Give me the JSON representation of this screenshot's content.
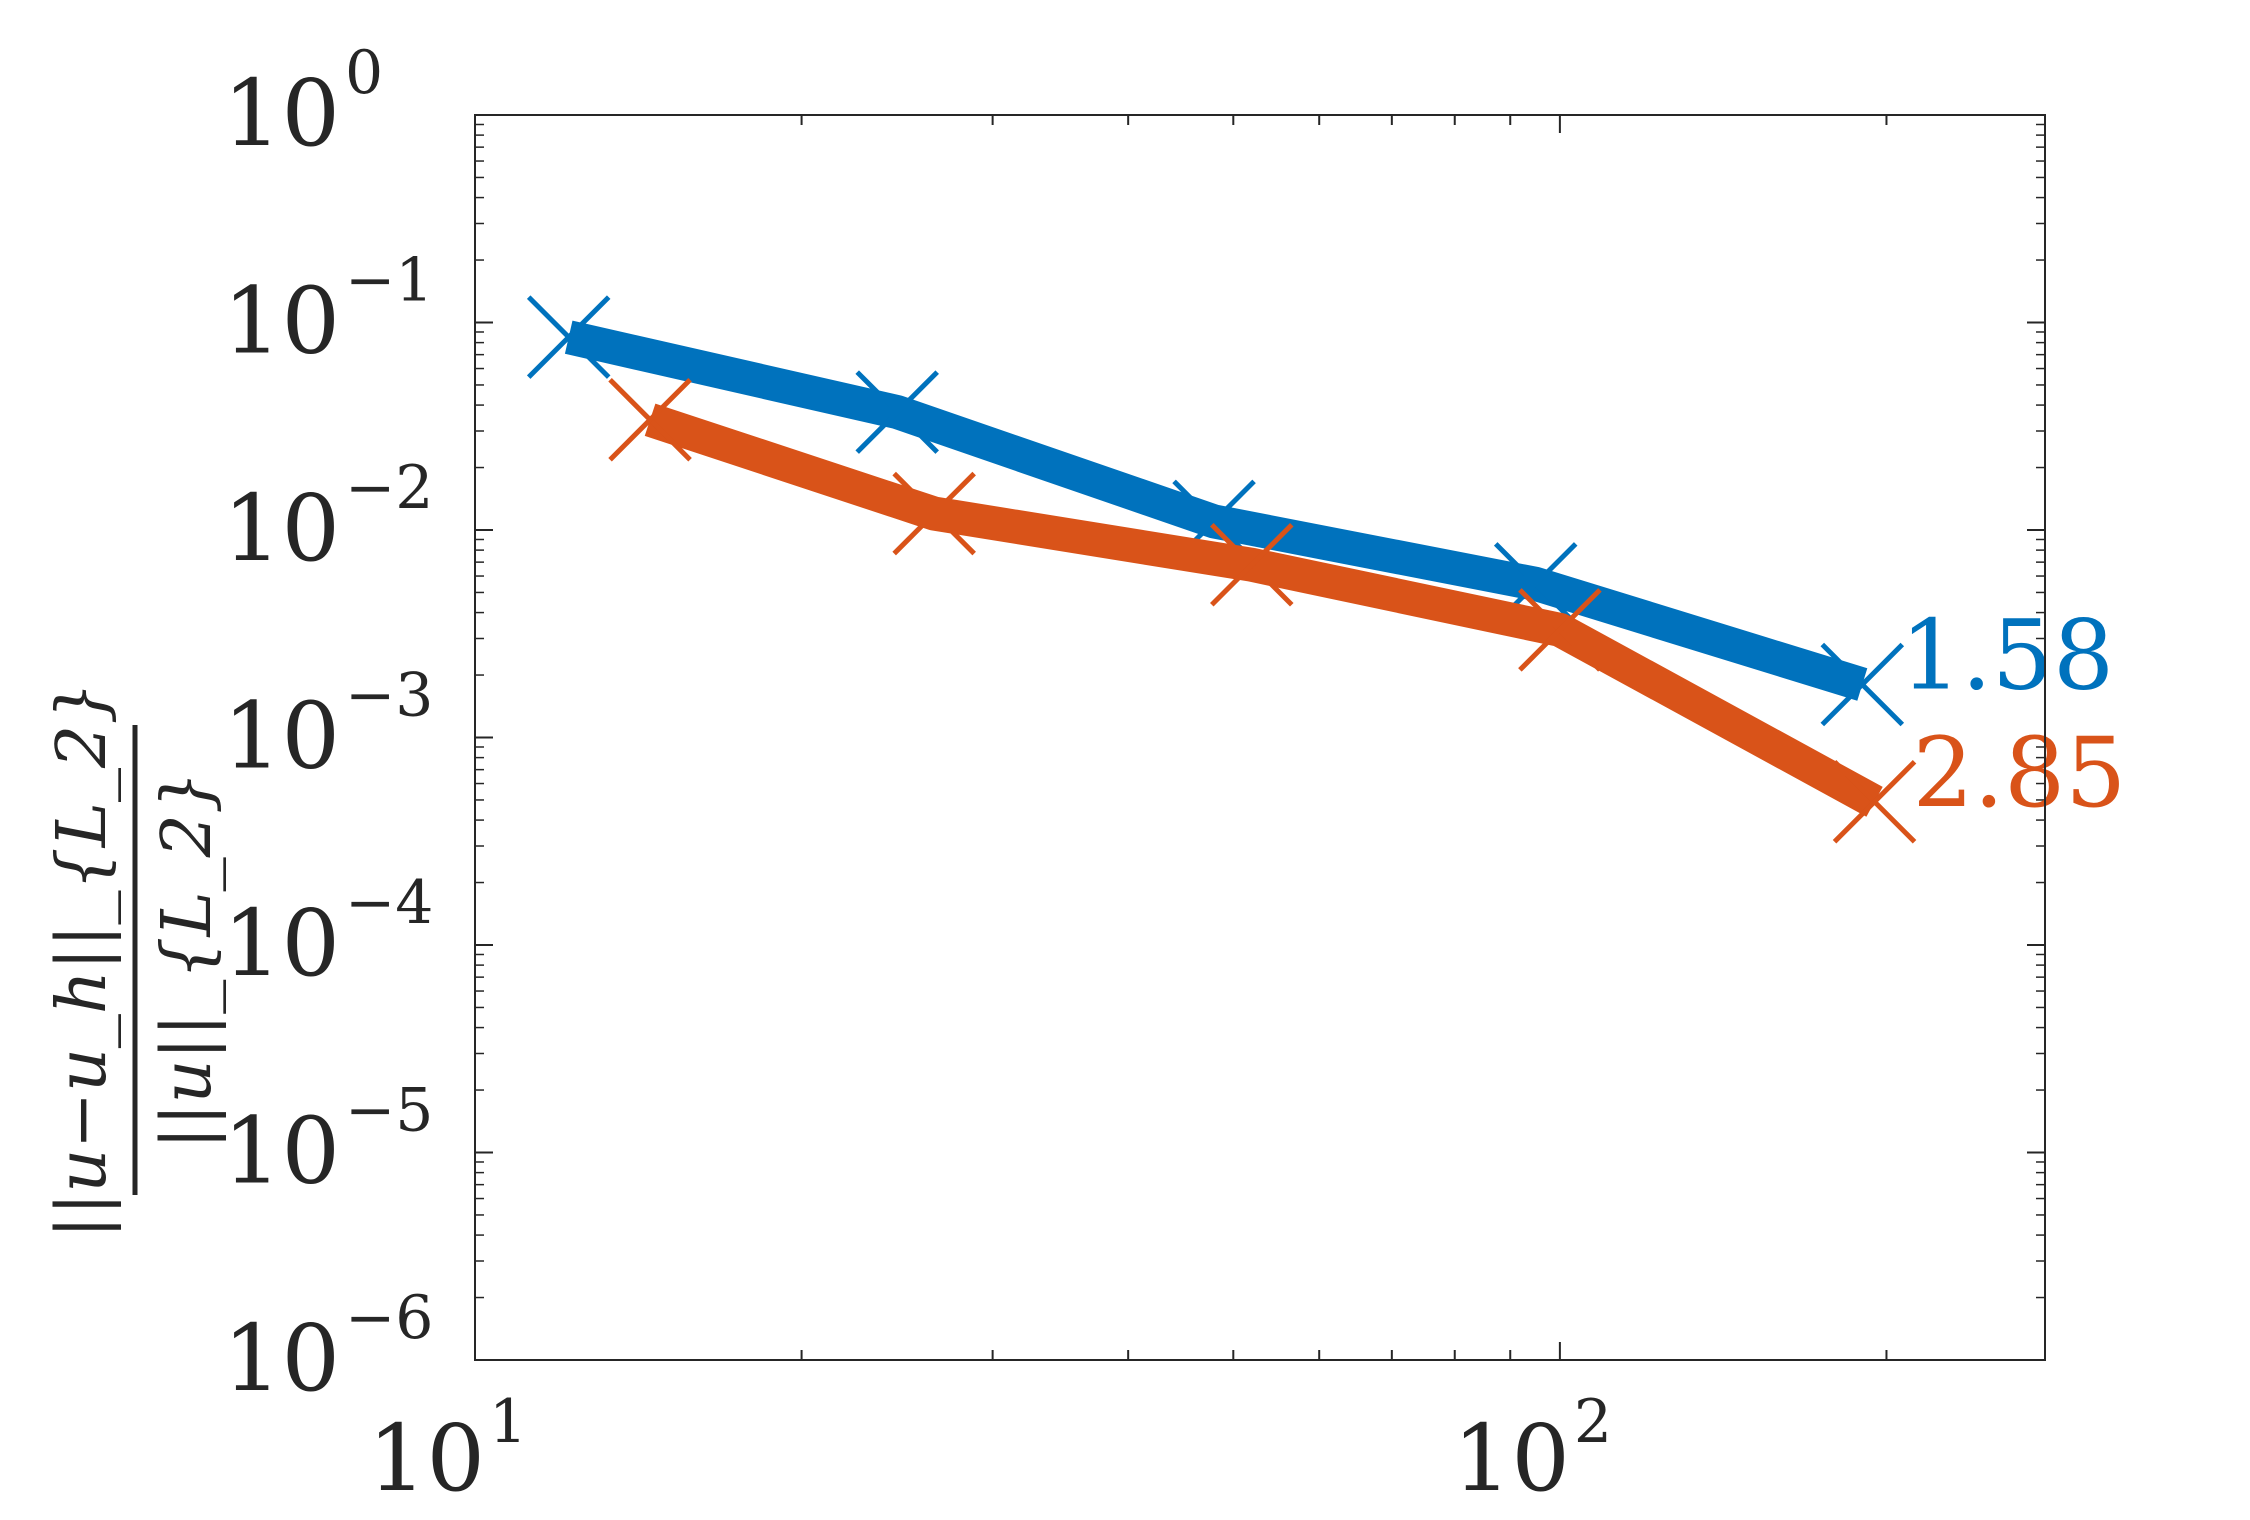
{
  "chart_data": {
    "type": "line",
    "xscale": "log",
    "yscale": "log",
    "xlim": [
      10,
      280
    ],
    "ylim": [
      1e-06,
      1
    ],
    "x_ticks": [
      {
        "value": 10,
        "base": "10",
        "exp": "1"
      },
      {
        "value": 100,
        "base": "10",
        "exp": "2"
      }
    ],
    "y_ticks": [
      {
        "value": 1,
        "base": "10",
        "exp": "0"
      },
      {
        "value": 0.1,
        "base": "10",
        "exp": "−1"
      },
      {
        "value": 0.01,
        "base": "10",
        "exp": "−2"
      },
      {
        "value": 0.001,
        "base": "10",
        "exp": "−3"
      },
      {
        "value": 0.0001,
        "base": "10",
        "exp": "−4"
      },
      {
        "value": 1e-05,
        "base": "10",
        "exp": "−5"
      },
      {
        "value": 1e-06,
        "base": "10",
        "exp": "−6"
      }
    ],
    "ylabel": {
      "numerator": "||u−u_h||_{L_2}",
      "denominator": "||u||_{L_2}"
    },
    "grid": false,
    "series": [
      {
        "color": "#0072BD",
        "marker": "x",
        "x": [
          12.2,
          24.5,
          48,
          95,
          190
        ],
        "y": [
          0.085,
          0.037,
          0.011,
          0.0055,
          0.0018
        ],
        "annotation": "1.58"
      },
      {
        "color": "#D95319",
        "marker": "x",
        "x": [
          14.5,
          26.5,
          52,
          100,
          195
        ],
        "y": [
          0.034,
          0.012,
          0.0068,
          0.0033,
          0.00049
        ],
        "annotation": "2.85"
      }
    ]
  }
}
